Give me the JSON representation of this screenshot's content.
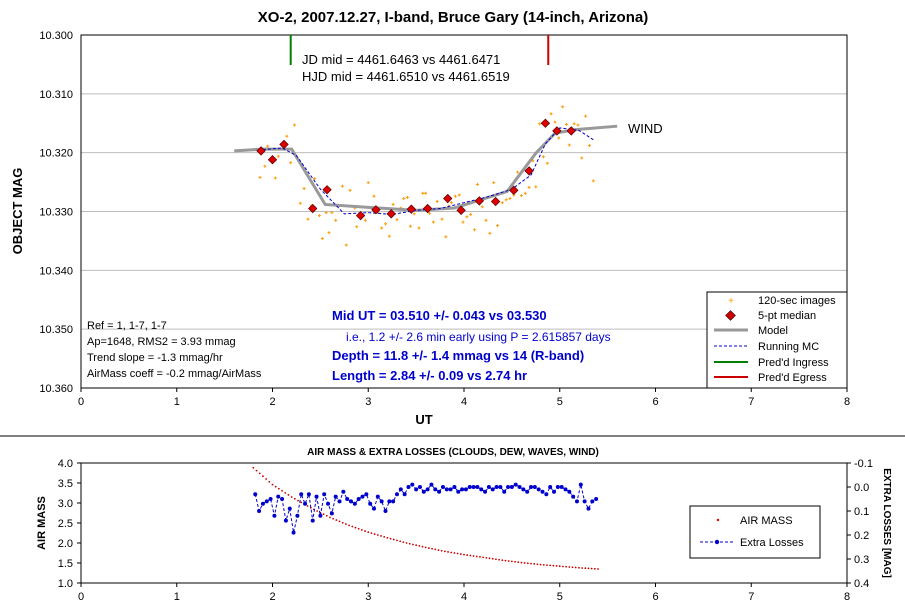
{
  "chart_data": [
    {
      "type": "scatter",
      "title": "XO-2, 2007.12.27, I-band, Bruce Gary (14-inch, Arizona)",
      "xlabel": "UT",
      "ylabel": "OBJECT MAG",
      "xlim": [
        0,
        8
      ],
      "ylim": [
        10.3,
        10.36
      ],
      "y_reversed": true,
      "x_ticks": [
        "0",
        "1",
        "2",
        "3",
        "4",
        "5",
        "6",
        "7",
        "8"
      ],
      "y_ticks": [
        "10.300",
        "10.310",
        "10.320",
        "10.330",
        "10.340",
        "10.350",
        "10.360"
      ],
      "grid": "horizontal",
      "legend_position": "bottom-right",
      "legend": [
        "120-sec images",
        "5-pt median",
        "Model",
        "Running MC",
        "Pred'd Ingress",
        "Pred'd Egress"
      ],
      "colors": {
        "images": "#ff9900",
        "median": "#ff0000",
        "model": "#999999",
        "running": "#0000cc",
        "ingress": "#008000",
        "egress": "#cc0000",
        "blue_text": "#0000cc"
      },
      "annotations": {
        "jd": "JD mid = 4461.6463 vs 4461.6471",
        "hjd": "HJD mid = 4461.6510 vs 4461.6519",
        "wind": "WIND",
        "ref": "Ref = 1, 1-7, 1-7",
        "ap": "Ap=1648, RMS2 = 3.93 mmag",
        "trend": "Trend slope = -1.3 mmag/hr",
        "airmass": "AirMass coeff = -0.2 mmag/AirMass",
        "mid_ut": "Mid UT = 03.510 +/- 0.043 vs 03.530",
        "ie": "i.e., 1.2 +/- 2.6 min early using P = 2.615857 days",
        "depth": "Depth = 11.8 +/- 1.4 mmag vs 14 (R-band)",
        "length": "Length = 2.84 +/- 0.09 vs 2.74 hr"
      },
      "ingress_ut": 2.19,
      "egress_ut": 4.88,
      "series": [
        {
          "name": "Model",
          "x": [
            1.6,
            1.9,
            2.2,
            2.55,
            3.1,
            3.5,
            3.9,
            4.45,
            4.75,
            4.95,
            5.15,
            5.6
          ],
          "y": [
            10.3197,
            10.3194,
            10.3194,
            10.3288,
            10.3294,
            10.3298,
            10.3294,
            10.3266,
            10.3201,
            10.3167,
            10.3161,
            10.3155
          ]
        },
        {
          "name": "Running MC",
          "x": [
            1.9,
            2.1,
            2.25,
            2.5,
            2.75,
            3.0,
            3.25,
            3.5,
            3.75,
            4.0,
            4.25,
            4.5,
            4.7,
            4.85,
            5.0,
            5.2,
            5.35
          ],
          "y": [
            10.3195,
            10.3192,
            10.3205,
            10.3262,
            10.3304,
            10.3302,
            10.3305,
            10.3298,
            10.3295,
            10.3285,
            10.3275,
            10.3262,
            10.3238,
            10.3185,
            10.3158,
            10.3162,
            10.3178
          ]
        },
        {
          "name": "5-pt median",
          "x": [
            1.88,
            2.0,
            2.12,
            2.42,
            2.57,
            2.92,
            3.08,
            3.24,
            3.45,
            3.62,
            3.83,
            3.97,
            4.16,
            4.33,
            4.52,
            4.68,
            4.85,
            4.97,
            5.12
          ],
          "y": [
            10.3197,
            10.3212,
            10.3186,
            10.3295,
            10.3263,
            10.3307,
            10.3297,
            10.3304,
            10.3296,
            10.3295,
            10.3278,
            10.3298,
            10.3282,
            10.3283,
            10.3264,
            10.3231,
            10.315,
            10.3163,
            10.3163
          ]
        },
        {
          "name": "120-sec images",
          "x": [
            1.87,
            1.92,
            1.95,
            2.03,
            2.06,
            2.15,
            2.19,
            2.23,
            2.29,
            2.33,
            2.37,
            2.41,
            2.44,
            2.49,
            2.52,
            2.56,
            2.59,
            2.62,
            2.66,
            2.7,
            2.73,
            2.77,
            2.81,
            2.86,
            2.88,
            2.93,
            2.97,
            3.0,
            3.06,
            3.1,
            3.14,
            3.18,
            3.22,
            3.26,
            3.3,
            3.34,
            3.37,
            3.41,
            3.44,
            3.48,
            3.53,
            3.57,
            3.6,
            3.64,
            3.68,
            3.72,
            3.77,
            3.81,
            3.84,
            3.87,
            3.91,
            3.95,
            3.99,
            4.03,
            4.07,
            4.11,
            4.14,
            4.19,
            4.23,
            4.27,
            4.31,
            4.35,
            4.4,
            4.44,
            4.48,
            4.52,
            4.56,
            4.6,
            4.64,
            4.68,
            4.72,
            4.75,
            4.79,
            4.83,
            4.87,
            4.91,
            4.95,
            4.99,
            5.03,
            5.07,
            5.1,
            5.15,
            5.19,
            5.23,
            5.27,
            5.31,
            5.35
          ],
          "y": [
            10.3242,
            10.3223,
            10.3189,
            10.3243,
            10.3206,
            10.3172,
            10.3217,
            10.3153,
            10.3286,
            10.3261,
            10.3313,
            10.329,
            10.3244,
            10.3307,
            10.3346,
            10.3302,
            10.3336,
            10.3302,
            10.3315,
            10.329,
            10.3257,
            10.3357,
            10.3264,
            10.3294,
            10.3326,
            10.3308,
            10.3315,
            10.3251,
            10.3274,
            10.3302,
            10.3328,
            10.3321,
            10.3342,
            10.3288,
            10.3314,
            10.3294,
            10.3278,
            10.3276,
            10.3325,
            10.3304,
            10.3328,
            10.3269,
            10.3269,
            10.3303,
            10.3318,
            10.3283,
            10.3313,
            10.3343,
            10.3291,
            10.3285,
            10.3274,
            10.3272,
            10.3318,
            10.3309,
            10.3305,
            10.3331,
            10.3254,
            10.3292,
            10.3315,
            10.3337,
            10.3251,
            10.3324,
            10.3285,
            10.328,
            10.3278,
            10.3272,
            10.3233,
            10.3273,
            10.3269,
            10.3259,
            10.3214,
            10.3258,
            10.3151,
            10.3207,
            10.3218,
            10.3134,
            10.3148,
            10.3175,
            10.3122,
            10.3152,
            10.3187,
            10.3151,
            10.3153,
            10.3209,
            10.3138,
            10.3188,
            10.3248
          ]
        }
      ]
    },
    {
      "type": "line",
      "title": "AIR MASS & EXTRA LOSSES (CLOUDS, DEW, WAVES, WIND)",
      "xlabel": "",
      "ylabel": "AIR MASS",
      "y2label": "EXTRA LOSSES [MAG]",
      "xlim": [
        0,
        8
      ],
      "ylim": [
        1.0,
        4.0
      ],
      "y2lim": [
        -0.1,
        0.4
      ],
      "y2_reversed": true,
      "x_ticks": [
        "0",
        "1",
        "2",
        "3",
        "4",
        "5",
        "6",
        "7",
        "8"
      ],
      "y_ticks": [
        "1.0",
        "1.5",
        "2.0",
        "2.5",
        "3.0",
        "3.5",
        "4.0"
      ],
      "y2_ticks": [
        "-0.1",
        "0.0",
        "0.1",
        "0.2",
        "0.3",
        "0.4"
      ],
      "legend_position": "right",
      "legend": [
        "AIR MASS",
        "Extra Losses"
      ],
      "colors": {
        "airmass": "#cc0000",
        "losses": "#0000cc"
      },
      "series": [
        {
          "name": "AIR MASS",
          "axis": "left",
          "x": [
            1.8,
            2.0,
            2.2,
            2.4,
            2.6,
            2.8,
            3.0,
            3.2,
            3.4,
            3.6,
            3.8,
            4.0,
            4.2,
            4.4,
            4.6,
            4.8,
            5.0,
            5.2,
            5.4
          ],
          "y": [
            3.88,
            3.46,
            3.15,
            2.88,
            2.64,
            2.44,
            2.27,
            2.13,
            2.0,
            1.89,
            1.79,
            1.71,
            1.64,
            1.57,
            1.51,
            1.46,
            1.42,
            1.38,
            1.35
          ]
        },
        {
          "name": "Extra Losses",
          "axis": "right",
          "x": [
            1.82,
            1.86,
            1.9,
            1.94,
            1.98,
            2.02,
            2.06,
            2.1,
            2.14,
            2.18,
            2.22,
            2.26,
            2.3,
            2.34,
            2.38,
            2.42,
            2.46,
            2.5,
            2.54,
            2.58,
            2.62,
            2.66,
            2.7,
            2.74,
            2.78,
            2.82,
            2.86,
            2.9,
            2.94,
            2.98,
            3.02,
            3.06,
            3.1,
            3.14,
            3.18,
            3.22,
            3.26,
            3.3,
            3.34,
            3.38,
            3.42,
            3.46,
            3.5,
            3.54,
            3.58,
            3.62,
            3.66,
            3.7,
            3.74,
            3.78,
            3.82,
            3.86,
            3.9,
            3.94,
            3.98,
            4.02,
            4.06,
            4.1,
            4.14,
            4.18,
            4.22,
            4.26,
            4.3,
            4.34,
            4.38,
            4.42,
            4.46,
            4.5,
            4.54,
            4.58,
            4.62,
            4.66,
            4.7,
            4.74,
            4.78,
            4.82,
            4.86,
            4.9,
            4.94,
            4.98,
            5.02,
            5.06,
            5.1,
            5.14,
            5.18,
            5.22,
            5.26,
            5.3,
            5.34,
            5.38
          ],
          "y": [
            0.03,
            0.1,
            0.07,
            0.06,
            0.05,
            0.12,
            0.04,
            0.05,
            0.14,
            0.09,
            0.19,
            0.12,
            0.03,
            0.07,
            0.03,
            0.14,
            0.04,
            0.12,
            0.03,
            0.07,
            0.11,
            0.04,
            0.06,
            0.02,
            0.05,
            0.06,
            0.07,
            0.05,
            0.04,
            0.03,
            0.07,
            0.09,
            0.04,
            0.06,
            0.1,
            0.06,
            0.06,
            0.03,
            0.01,
            0.03,
            0.0,
            -0.01,
            0.01,
            0.0,
            0.02,
            0.01,
            -0.01,
            0.01,
            0.02,
            0.0,
            0.01,
            0.01,
            0.0,
            0.02,
            0.01,
            0.01,
            0.0,
            0.0,
            0.0,
            0.01,
            0.02,
            0.0,
            0.01,
            0.0,
            0.0,
            0.02,
            0.0,
            0.0,
            -0.01,
            0.0,
            0.01,
            0.02,
            0.0,
            0.0,
            0.01,
            0.02,
            0.03,
            0.0,
            0.02,
            0.0,
            0.0,
            0.01,
            0.02,
            0.04,
            0.06,
            -0.01,
            0.06,
            0.09,
            0.06,
            0.05
          ]
        }
      ]
    }
  ]
}
